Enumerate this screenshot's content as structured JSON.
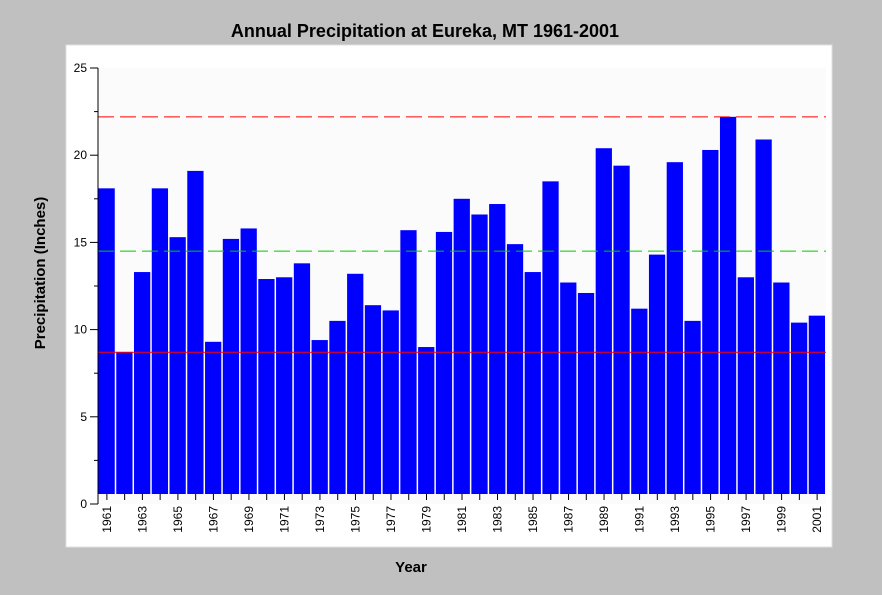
{
  "chart_data": {
    "type": "bar",
    "title": "Annual Precipitation at Eureka, MT 1961-2001",
    "xlabel": "Year",
    "ylabel": "Precipitation (Inches)",
    "ylim": [
      0,
      25
    ],
    "yticks": [
      0,
      5,
      10,
      15,
      20,
      25
    ],
    "categories": [
      "1961",
      "1962",
      "1963",
      "1964",
      "1965",
      "1966",
      "1967",
      "1968",
      "1969",
      "1970",
      "1971",
      "1972",
      "1973",
      "1974",
      "1975",
      "1976",
      "1977",
      "1978",
      "1979",
      "1980",
      "1981",
      "1982",
      "1983",
      "1984",
      "1985",
      "1986",
      "1987",
      "1988",
      "1989",
      "1990",
      "1991",
      "1992",
      "1993",
      "1994",
      "1995",
      "1996",
      "1997",
      "1998",
      "1999",
      "2000",
      "2001"
    ],
    "xtick_labels": [
      "1961",
      "1963",
      "1965",
      "1967",
      "1969",
      "1971",
      "1973",
      "1975",
      "1977",
      "1979",
      "1981",
      "1983",
      "1985",
      "1987",
      "1989",
      "1991",
      "1993",
      "1995",
      "1997",
      "1999",
      "2001"
    ],
    "values": [
      18.1,
      8.7,
      13.3,
      18.1,
      15.3,
      19.1,
      9.3,
      15.2,
      15.8,
      12.9,
      13.0,
      13.8,
      9.4,
      10.5,
      13.2,
      11.4,
      11.1,
      15.7,
      9.0,
      15.6,
      17.5,
      16.6,
      17.2,
      14.9,
      13.3,
      18.5,
      12.7,
      12.1,
      20.4,
      19.4,
      11.2,
      14.3,
      19.6,
      10.5,
      20.3,
      22.2,
      13.0,
      20.9,
      12.7,
      10.4,
      10.8
    ],
    "series_color": "#0000ff",
    "reference_lines": [
      {
        "value": 22.2,
        "color": "#ff0000",
        "style": "dashed"
      },
      {
        "value": 14.5,
        "color": "#00cc00",
        "style": "dashed"
      },
      {
        "value": 8.7,
        "color": "#ff0000",
        "style": "solid"
      }
    ],
    "grid": false,
    "legend": "none"
  }
}
